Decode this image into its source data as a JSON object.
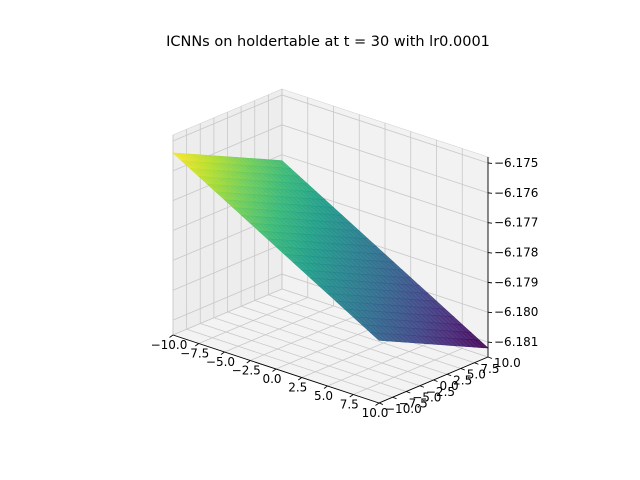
{
  "chart_data": {
    "type": "surface3d",
    "title": "ICNNs on holdertable at t = 30 with lr0.0001",
    "xlabel": "",
    "ylabel": "",
    "zlabel": "",
    "xlim": [
      -10,
      10
    ],
    "ylim": [
      -10,
      10
    ],
    "zlim": [
      -6.1815,
      -6.1748
    ],
    "x_ticks": [
      "−10.0",
      "−7.5",
      "−5.0",
      "−2.5",
      "0.0",
      "2.5",
      "5.0",
      "7.5",
      "10.0"
    ],
    "y_ticks": [
      "−10.0",
      "−7.5",
      "−5.0",
      "−2.5",
      "0.0",
      "2.5",
      "5.0",
      "7.5",
      "10.0"
    ],
    "z_ticks": [
      "−6.175",
      "−6.176",
      "−6.177",
      "−6.178",
      "−6.179",
      "−6.180",
      "−6.181"
    ],
    "surface_corners": [
      {
        "x": -10,
        "y": -10,
        "z": -6.1754
      },
      {
        "x": 10,
        "y": -10,
        "z": -6.1794
      },
      {
        "x": -10,
        "y": 10,
        "z": -6.1772
      },
      {
        "x": 10,
        "y": 10,
        "z": -6.1812
      }
    ],
    "colormap": "viridis",
    "grid": true
  }
}
